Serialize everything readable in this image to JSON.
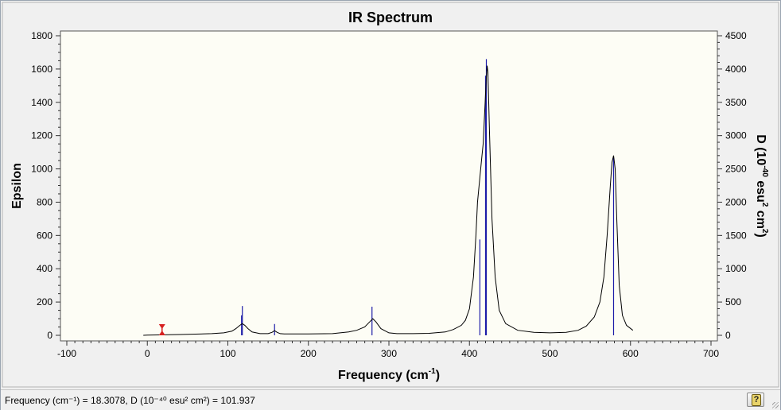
{
  "chart_data": {
    "type": "line",
    "title": "IR Spectrum",
    "xlabel": "Frequency (cm",
    "xlabel_sup": "-1",
    "xlabel_end": ")",
    "ylabel": "Epsilon",
    "y2label": "D (10",
    "y2label_sup1": "-40",
    "y2label_mid": " esu",
    "y2label_sup2": "2",
    "y2label_mid2": " cm",
    "y2label_sup3": "2",
    "y2label_end": ")",
    "xlim": [
      -100,
      700
    ],
    "ylim": [
      0,
      1800
    ],
    "y2lim": [
      0,
      4500
    ],
    "xticks": [
      "-100",
      "0",
      "100",
      "200",
      "300",
      "400",
      "500",
      "600",
      "700"
    ],
    "yticks": [
      "0",
      "200",
      "400",
      "600",
      "800",
      "1000",
      "1200",
      "1400",
      "1600",
      "1800"
    ],
    "y2ticks": [
      "0",
      "500",
      "1000",
      "1500",
      "2000",
      "2500",
      "3000",
      "3500",
      "4000",
      "4500"
    ],
    "spectrum": {
      "name": "Epsilon",
      "x": [
        -5,
        0,
        20,
        40,
        60,
        80,
        95,
        105,
        110,
        115,
        118,
        121,
        125,
        130,
        140,
        150,
        155,
        158,
        161,
        165,
        170,
        200,
        230,
        250,
        260,
        270,
        276,
        280,
        284,
        290,
        300,
        310,
        330,
        350,
        370,
        380,
        390,
        395,
        400,
        405,
        408,
        410,
        413,
        415,
        417,
        419,
        421,
        422,
        423,
        425,
        428,
        432,
        437,
        445,
        460,
        480,
        500,
        520,
        535,
        545,
        555,
        562,
        567,
        571,
        575,
        577,
        579,
        581,
        583,
        586,
        590,
        595,
        603
      ],
      "y": [
        0,
        1,
        3,
        5,
        7,
        10,
        15,
        25,
        40,
        60,
        70,
        60,
        40,
        20,
        10,
        10,
        18,
        28,
        18,
        10,
        8,
        8,
        10,
        20,
        30,
        50,
        80,
        100,
        80,
        40,
        15,
        10,
        10,
        12,
        20,
        35,
        60,
        90,
        160,
        350,
        600,
        800,
        950,
        1050,
        1150,
        1350,
        1550,
        1620,
        1580,
        1200,
        700,
        350,
        150,
        70,
        30,
        18,
        15,
        18,
        30,
        55,
        110,
        200,
        350,
        600,
        900,
        1040,
        1080,
        1000,
        700,
        300,
        120,
        60,
        30
      ]
    },
    "intensities": {
      "name": "D (10-40 esu2 cm2)",
      "x": [
        117,
        118,
        158,
        279,
        413,
        420,
        421,
        579
      ],
      "y": [
        300,
        440,
        170,
        430,
        1440,
        3900,
        4150,
        2670
      ]
    },
    "marker": {
      "x": 18.3,
      "y": 101.937
    },
    "grid": false,
    "colors": {
      "plot_bg": "#fdfdf5",
      "spectrum": "#000000",
      "sticks": "#1c1ca8",
      "marker": "#d62020"
    }
  },
  "status": {
    "readout": "Frequency (cm⁻¹) = 18.3078, D (10⁻⁴⁰ esu² cm²) = 101.937",
    "help_label": "?"
  }
}
